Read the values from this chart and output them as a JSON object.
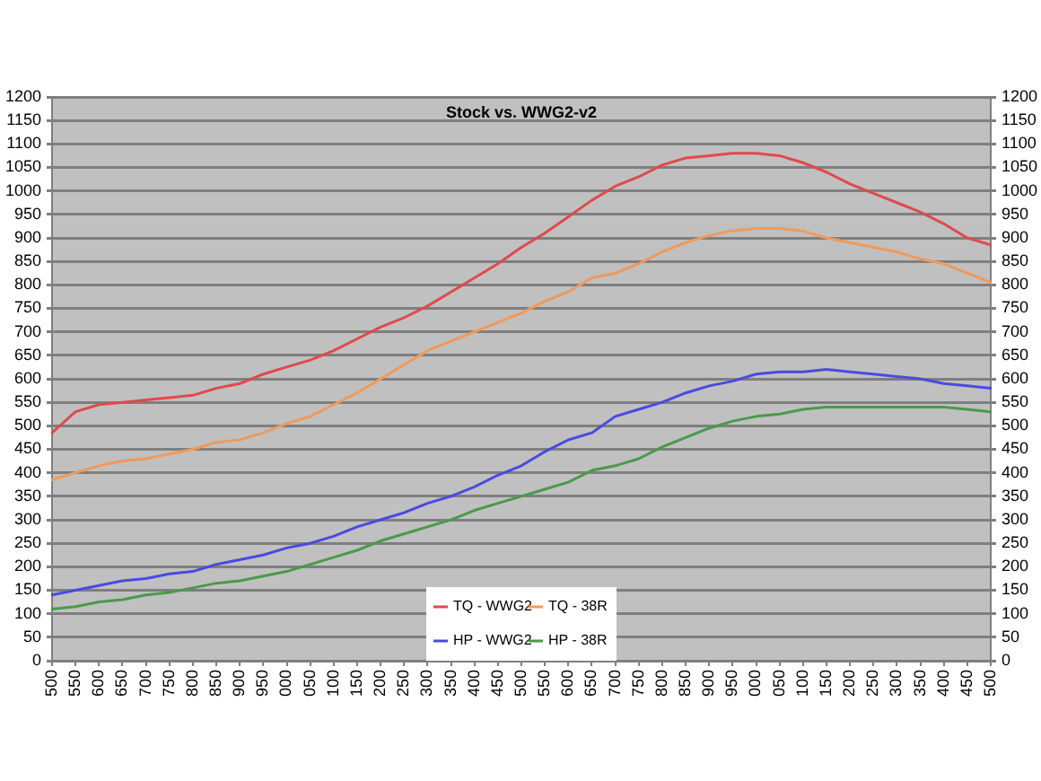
{
  "chart_data": {
    "type": "line",
    "title": "Stock vs. WWG2-v2",
    "categories": [
      "500",
      "550",
      "600",
      "650",
      "700",
      "750",
      "800",
      "850",
      "900",
      "950",
      "000",
      "050",
      "100",
      "150",
      "200",
      "250",
      "300",
      "350",
      "400",
      "450",
      "500",
      "550",
      "600",
      "650",
      "700",
      "750",
      "800",
      "850",
      "900",
      "950",
      "000",
      "050",
      "100",
      "150",
      "200",
      "250",
      "300",
      "350",
      "400",
      "450",
      "500"
    ],
    "series": [
      {
        "name": "TQ - WWG2",
        "color": "#e04a4a",
        "values": [
          485,
          530,
          545,
          550,
          555,
          560,
          565,
          580,
          590,
          610,
          625,
          640,
          660,
          685,
          710,
          730,
          755,
          785,
          815,
          845,
          880,
          910,
          945,
          980,
          1010,
          1030,
          1055,
          1070,
          1075,
          1080,
          1080,
          1075,
          1060,
          1040,
          1015,
          995,
          975,
          955,
          930,
          900,
          885
        ]
      },
      {
        "name": "TQ - 38R",
        "color": "#f09a5a",
        "values": [
          385,
          400,
          415,
          425,
          430,
          440,
          450,
          465,
          470,
          485,
          505,
          520,
          545,
          570,
          600,
          630,
          660,
          680,
          700,
          720,
          740,
          765,
          785,
          815,
          825,
          845,
          870,
          890,
          905,
          915,
          920,
          920,
          915,
          900,
          890,
          880,
          870,
          855,
          845,
          825,
          805
        ]
      },
      {
        "name": "HP - WWG2",
        "color": "#4a4ae0",
        "values": [
          140,
          150,
          160,
          170,
          175,
          185,
          190,
          205,
          215,
          225,
          240,
          250,
          265,
          285,
          300,
          315,
          335,
          350,
          370,
          395,
          415,
          445,
          470,
          485,
          520,
          535,
          550,
          570,
          585,
          595,
          610,
          615,
          615,
          620,
          615,
          610,
          605,
          600,
          590,
          585,
          580
        ]
      },
      {
        "name": "HP - 38R",
        "color": "#4a9a4a",
        "values": [
          110,
          115,
          125,
          130,
          140,
          145,
          155,
          165,
          170,
          180,
          190,
          205,
          220,
          235,
          255,
          270,
          285,
          300,
          320,
          335,
          350,
          365,
          380,
          405,
          415,
          430,
          455,
          475,
          495,
          510,
          520,
          525,
          535,
          540,
          540,
          540,
          540,
          540,
          540,
          535,
          530
        ]
      }
    ],
    "ylim": [
      0,
      1200
    ],
    "yticks": [
      0,
      50,
      100,
      150,
      200,
      250,
      300,
      350,
      400,
      450,
      500,
      550,
      600,
      650,
      700,
      750,
      800,
      850,
      900,
      950,
      1000,
      1050,
      1100,
      1150,
      1200
    ],
    "y2lim": [
      0,
      1200
    ],
    "y2ticks": [
      0,
      50,
      100,
      150,
      200,
      250,
      300,
      350,
      400,
      450,
      500,
      550,
      600,
      650,
      700,
      750,
      800,
      850,
      900,
      950,
      1000,
      1050,
      1100,
      1150,
      1200
    ],
    "grid": "y",
    "legend": "bottom"
  }
}
